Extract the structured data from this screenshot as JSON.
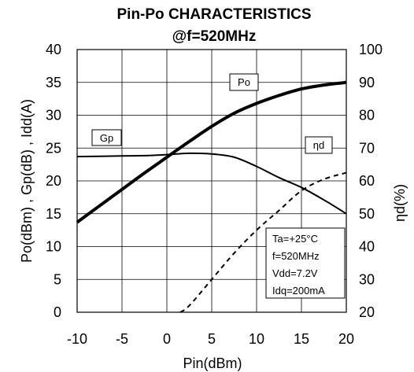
{
  "chart_data": {
    "type": "line",
    "title": "Pin-Po CHARACTERISTICS",
    "subtitle": "@f=520MHz",
    "xlabel": "Pin(dBm)",
    "ylabel_left": "Po(dBm) , Gp(dB) , Idd(A)",
    "ylabel_right": "ηd(%)",
    "xlim": [
      -10,
      20
    ],
    "ylim_left": [
      0,
      40
    ],
    "ylim_right": [
      20,
      100
    ],
    "x_ticks": [
      "-10",
      "-5",
      "0",
      "5",
      "10",
      "15",
      "20"
    ],
    "y_left_ticks": [
      "0",
      "5",
      "10",
      "15",
      "20",
      "25",
      "30",
      "35",
      "40"
    ],
    "y_right_ticks": [
      "20",
      "30",
      "40",
      "50",
      "60",
      "70",
      "80",
      "90",
      "100"
    ],
    "grid": true,
    "series": [
      {
        "name": "Po",
        "axis": "left",
        "style": "solid-thick",
        "x": [
          -10,
          -7.5,
          -5,
          -2.5,
          0,
          2.5,
          5,
          7.5,
          10,
          12.5,
          15,
          17.5,
          20
        ],
        "y": [
          13.7,
          16.2,
          18.7,
          21.2,
          23.6,
          26.0,
          28.3,
          30.3,
          31.8,
          33.0,
          34.0,
          34.6,
          35.0
        ]
      },
      {
        "name": "Gp",
        "axis": "left",
        "style": "solid",
        "x": [
          -10,
          -7.5,
          -5,
          -2.5,
          0,
          2.5,
          5,
          7.5,
          10,
          12.5,
          15,
          17.5,
          20
        ],
        "y": [
          23.7,
          23.75,
          23.8,
          23.85,
          24.0,
          24.2,
          24.1,
          23.6,
          22.2,
          20.5,
          19.0,
          17.1,
          15.0
        ]
      },
      {
        "name": "ηd",
        "axis": "right",
        "style": "dashed",
        "x": [
          1.5,
          2.5,
          5,
          7.5,
          10,
          12.5,
          15,
          17.5,
          20
        ],
        "y": [
          20,
          22,
          30,
          38,
          45,
          51,
          57,
          60.5,
          62.5
        ]
      }
    ],
    "conditions": [
      "Ta=+25°C",
      "f=520MHz",
      "Vdd=7.2V",
      "Idq=200mA"
    ]
  }
}
